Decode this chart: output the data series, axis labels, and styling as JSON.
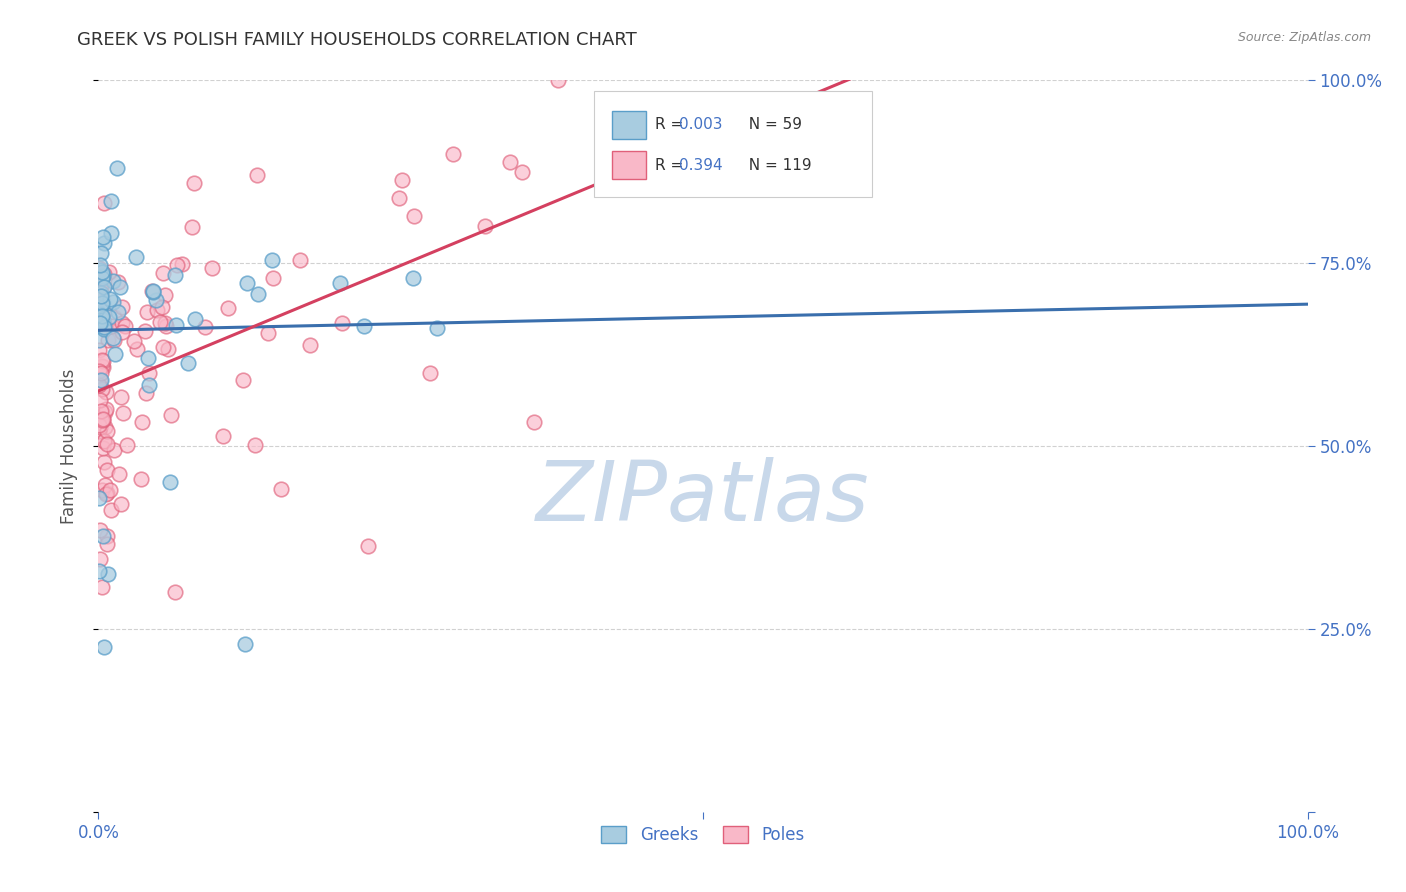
{
  "title": "GREEK VS POLISH FAMILY HOUSEHOLDS CORRELATION CHART",
  "source_text": "Source: ZipAtlas.com",
  "ylabel": "Family Households",
  "legend_greek_r": "0.003",
  "legend_greek_n": "59",
  "legend_poles_r": "0.394",
  "legend_poles_n": "119",
  "legend_greek_label": "Greeks",
  "legend_poles_label": "Poles",
  "greek_color": "#a8cce0",
  "greek_edge_color": "#5a9ec9",
  "poles_color": "#f9b8c8",
  "poles_edge_color": "#e0607a",
  "trendline_greek_color": "#3a6fad",
  "trendline_poles_color": "#d44060",
  "watermark_color": "#c8d8ea",
  "background_color": "#ffffff",
  "grid_color": "#cccccc",
  "title_color": "#333333",
  "axis_label_color": "#4472c4",
  "ytick_color": "#4472c4",
  "r_color": "#4472c4",
  "xlim": [
    0.0,
    1.0
  ],
  "ylim": [
    0.0,
    1.0
  ],
  "greek_trendline_y": [
    0.685,
    0.685
  ],
  "poles_trendline": [
    0.56,
    0.87
  ]
}
